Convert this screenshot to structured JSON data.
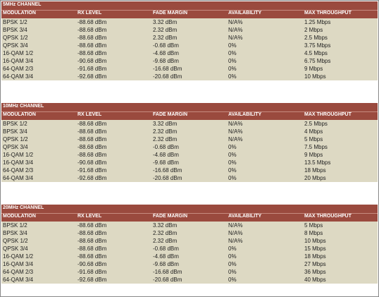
{
  "headers": [
    "MODULATION",
    "RX LEVEL",
    "FADE MARGIN",
    "AVAILABILITY",
    "MAX THROUGHPUT"
  ],
  "tables": [
    {
      "title": "5MHz CHANNEL",
      "rows": [
        [
          "BPSK 1/2",
          "-88.68 dBm",
          "3.32 dBm",
          "N/A%",
          "1.25 Mbps"
        ],
        [
          "BPSK 3/4",
          "-88.68 dBm",
          "2.32 dBm",
          "N/A%",
          "2 Mbps"
        ],
        [
          "QPSK 1/2",
          "-88.68 dBm",
          "2.32 dBm",
          "N/A%",
          "2.5 Mbps"
        ],
        [
          "QPSK 3/4",
          "-88.68 dBm",
          "-0.68 dBm",
          "0%",
          "3.75 Mbps"
        ],
        [
          "16-QAM 1/2",
          "-88.68 dBm",
          "-4.68 dBm",
          "0%",
          "4.5 Mbps"
        ],
        [
          "16-QAM 3/4",
          "-90.68 dBm",
          "-9.68 dBm",
          "0%",
          "6.75 Mbps"
        ],
        [
          "64-QAM 2/3",
          "-91.68 dBm",
          "-16.68 dBm",
          "0%",
          "9 Mbps"
        ],
        [
          "64-QAM 3/4",
          "-92.68 dBm",
          "-20.68 dBm",
          "0%",
          "10 Mbps"
        ]
      ]
    },
    {
      "title": "10MHz CHANNEL",
      "rows": [
        [
          "BPSK 1/2",
          "-88.68 dBm",
          "3.32 dBm",
          "N/A%",
          "2.5 Mbps"
        ],
        [
          "BPSK 3/4",
          "-88.68 dBm",
          "2.32 dBm",
          "N/A%",
          "4 Mbps"
        ],
        [
          "QPSK 1/2",
          "-88.68 dBm",
          "2.32 dBm",
          "N/A%",
          "5 Mbps"
        ],
        [
          "QPSK 3/4",
          "-88.68 dBm",
          "-0.68 dBm",
          "0%",
          "7.5 Mbps"
        ],
        [
          "16-QAM 1/2",
          "-88.68 dBm",
          "-4.68 dBm",
          "0%",
          "9 Mbps"
        ],
        [
          "16-QAM 3/4",
          "-90.68 dBm",
          "-9.68 dBm",
          "0%",
          "13.5 Mbps"
        ],
        [
          "64-QAM 2/3",
          "-91.68 dBm",
          "-16.68 dBm",
          "0%",
          "18 Mbps"
        ],
        [
          "64-QAM 3/4",
          "-92.68 dBm",
          "-20.68 dBm",
          "0%",
          "20 Mbps"
        ]
      ]
    },
    {
      "title": "20MHz CHANNEL",
      "rows": [
        [
          "BPSK 1/2",
          "-88.68 dBm",
          "3.32 dBm",
          "N/A%",
          "5 Mbps"
        ],
        [
          "BPSK 3/4",
          "-88.68 dBm",
          "2.32 dBm",
          "N/A%",
          "8 Mbps"
        ],
        [
          "QPSK 1/2",
          "-88.68 dBm",
          "2.32 dBm",
          "N/A%",
          "10 Mbps"
        ],
        [
          "QPSK 3/4",
          "-88.68 dBm",
          "-0.68 dBm",
          "0%",
          "15 Mbps"
        ],
        [
          "16-QAM 1/2",
          "-88.68 dBm",
          "-4.68 dBm",
          "0%",
          "18 Mbps"
        ],
        [
          "16-QAM 3/4",
          "-90.68 dBm",
          "-9.68 dBm",
          "0%",
          "27 Mbps"
        ],
        [
          "64-QAM 2/3",
          "-91.68 dBm",
          "-16.68 dBm",
          "0%",
          "36 Mbps"
        ],
        [
          "64-QAM 3/4",
          "-92.68 dBm",
          "-20.68 dBm",
          "0%",
          "40 Mbps"
        ]
      ]
    }
  ],
  "colors": {
    "header_bg": "#9a4a3e",
    "row_bg": "#ddd9c3",
    "header_text": "#ffffff"
  }
}
